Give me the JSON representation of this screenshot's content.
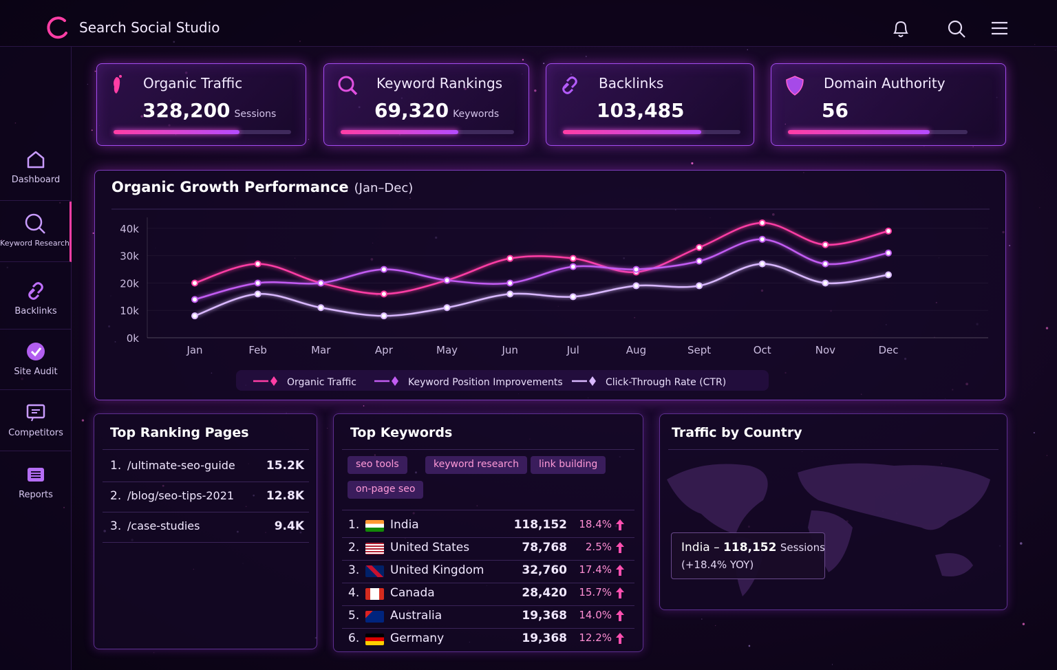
{
  "header": {
    "title": "Search Social Studio"
  },
  "sidebar": {
    "items": [
      "Dashboard",
      "Keyword Research",
      "Backlinks",
      "Site Audit",
      "Competitors",
      "Reports"
    ]
  },
  "kpis": [
    {
      "label": "Organic Traffic",
      "value": "328,200",
      "unit": "Sessions",
      "progress": 71
    },
    {
      "label": "Keyword Rankings",
      "value": "69,320",
      "unit": "Keywords",
      "progress": 68
    },
    {
      "label": "Backlinks",
      "value": "103,485",
      "progress": 78
    },
    {
      "label": "Domain Authority",
      "value": "56",
      "progress": 79
    }
  ],
  "chart_data": {
    "type": "line",
    "title": "Organic Growth Performance",
    "subtitle": "(Jan–Dec)",
    "categories": [
      "Jan",
      "Feb",
      "Mar",
      "Apr",
      "May",
      "Jun",
      "Jul",
      "Aug",
      "Sept",
      "Oct",
      "Nov",
      "Dec"
    ],
    "series": [
      {
        "name": "Organic Traffic",
        "color": "#ff3ea5",
        "values": [
          20000,
          27000,
          20000,
          16000,
          21000,
          29000,
          29000,
          24000,
          33000,
          42000,
          34000,
          39000
        ]
      },
      {
        "name": "Keyword Position Improvements",
        "color": "#c25cf2",
        "values": [
          14000,
          20000,
          20000,
          25000,
          21000,
          20000,
          26000,
          25000,
          28000,
          36000,
          27000,
          31000
        ]
      },
      {
        "name": "Click-Through Rate (CTR)",
        "color": "#d9b8ff",
        "values": [
          8000,
          16000,
          11000,
          8000,
          11000,
          16000,
          15000,
          19000,
          19000,
          27000,
          20000,
          23000
        ]
      }
    ],
    "ylim": [
      0,
      44000
    ],
    "yticks": [
      {
        "value": 0,
        "label": "0k"
      },
      {
        "value": 10000,
        "label": "10k"
      },
      {
        "value": 20000,
        "label": "20k"
      },
      {
        "value": 30000,
        "label": "30k"
      },
      {
        "value": 40000,
        "label": "40k"
      }
    ],
    "grid": true,
    "legend": "bottom"
  },
  "top_pages": {
    "title": "Top Ranking Pages",
    "rows": [
      [
        "1.",
        "/ultimate-seo-guide",
        "15.2K"
      ],
      [
        "2.",
        "/blog/seo-tips-2021",
        "12.8K"
      ],
      [
        "3.",
        "/case-studies",
        "9.4K"
      ]
    ]
  },
  "top_keywords": {
    "title": "Top Keywords",
    "tags": [
      "seo tools",
      "keyword research",
      "link building",
      "on-page seo"
    ],
    "rows": [
      [
        "1.",
        "India",
        "118,152",
        "18.4%"
      ],
      [
        "2.",
        "United States",
        "78,768",
        "2.5%"
      ],
      [
        "3.",
        "United Kingdom",
        "32,760",
        "17.4%"
      ],
      [
        "4.",
        "Canada",
        "28,420",
        "15.7%"
      ],
      [
        "5.",
        "Australia",
        "19,368",
        "14.0%"
      ],
      [
        "6.",
        "Germany",
        "19,368",
        "12.2%"
      ]
    ]
  },
  "traffic_by_country": {
    "title": "Traffic by Country",
    "tooltip": {
      "place": "India –",
      "value": "118,152",
      "unit": "Sessions",
      "change": "(+18.4% YOY)"
    }
  }
}
